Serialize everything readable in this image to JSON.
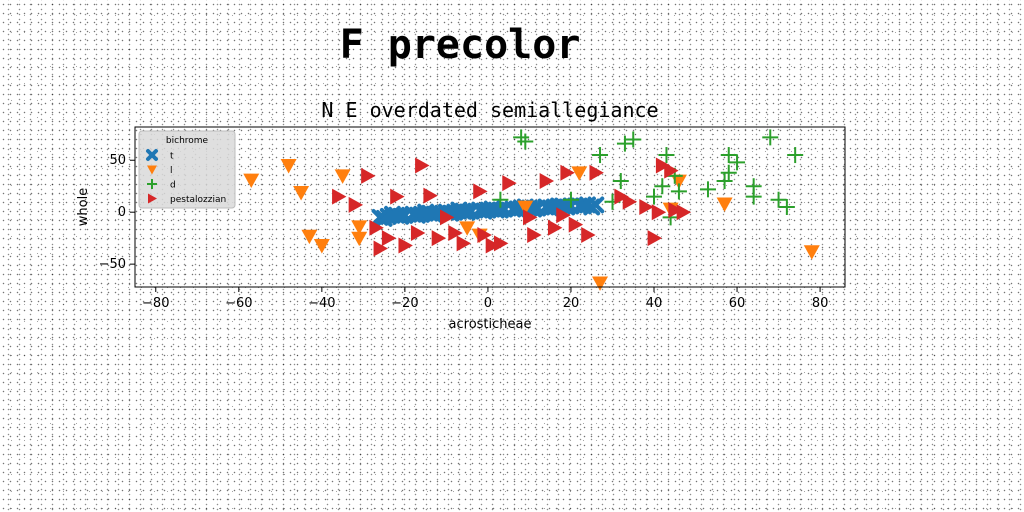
{
  "figure": {
    "suptitle": "F precolor"
  },
  "chart_data": {
    "type": "scatter",
    "title": "N E overdated semiallegiance",
    "xlabel": "acrosticheae",
    "ylabel": "whole",
    "xlim": [
      -85,
      86
    ],
    "ylim": [
      -72,
      82
    ],
    "xticks": [
      -80,
      -60,
      -40,
      -20,
      0,
      20,
      40,
      60,
      80
    ],
    "yticks": [
      -50,
      0,
      50
    ],
    "grid": false,
    "legend": {
      "title": "bichrome",
      "placement": "upper-left"
    },
    "series": [
      {
        "name": "t",
        "marker": "X",
        "color": "#1f77b4",
        "points": [
          [
            -26,
            -5
          ],
          [
            -24,
            -4
          ],
          [
            -22,
            -3
          ],
          [
            -20,
            -3
          ],
          [
            -18,
            -2
          ],
          [
            -16,
            -2
          ],
          [
            -14,
            -1
          ],
          [
            -12,
            -1
          ],
          [
            -10,
            0
          ],
          [
            -8,
            0
          ],
          [
            -6,
            1
          ],
          [
            -4,
            1
          ],
          [
            -2,
            2
          ],
          [
            0,
            2
          ],
          [
            2,
            2
          ],
          [
            4,
            3
          ],
          [
            6,
            3
          ],
          [
            8,
            4
          ],
          [
            10,
            4
          ],
          [
            12,
            4
          ],
          [
            14,
            5
          ],
          [
            16,
            5
          ],
          [
            18,
            6
          ],
          [
            20,
            6
          ],
          [
            22,
            6
          ],
          [
            24,
            7
          ],
          [
            26,
            7
          ],
          [
            -25,
            -6
          ],
          [
            -21,
            -4
          ],
          [
            -17,
            -3
          ],
          [
            -13,
            -2
          ],
          [
            -9,
            -1
          ],
          [
            -5,
            0
          ],
          [
            -1,
            1
          ],
          [
            3,
            2
          ],
          [
            7,
            3
          ],
          [
            11,
            3
          ],
          [
            15,
            4
          ],
          [
            19,
            5
          ],
          [
            23,
            6
          ],
          [
            -23,
            -2
          ],
          [
            -15,
            0
          ],
          [
            -7,
            2
          ],
          [
            1,
            3
          ],
          [
            9,
            5
          ],
          [
            17,
            6
          ],
          [
            25,
            5
          ]
        ]
      },
      {
        "name": "l",
        "marker": "v",
        "color": "#ff7f0e",
        "points": [
          [
            -57,
            31
          ],
          [
            -48,
            45
          ],
          [
            -45,
            19
          ],
          [
            -43,
            -23
          ],
          [
            -40,
            -32
          ],
          [
            -35,
            35
          ],
          [
            -31,
            -14
          ],
          [
            -31,
            -25
          ],
          [
            -2,
            -22
          ],
          [
            9,
            5
          ],
          [
            22,
            38
          ],
          [
            27,
            -68
          ],
          [
            44,
            3
          ],
          [
            46,
            30
          ],
          [
            57,
            8
          ],
          [
            78,
            -38
          ],
          [
            -5,
            -15
          ]
        ]
      },
      {
        "name": "d",
        "marker": "+",
        "color": "#2ca02c",
        "points": [
          [
            3,
            12
          ],
          [
            8,
            72
          ],
          [
            9,
            68
          ],
          [
            20,
            12
          ],
          [
            27,
            55
          ],
          [
            30,
            10
          ],
          [
            32,
            30
          ],
          [
            33,
            66
          ],
          [
            35,
            70
          ],
          [
            40,
            15
          ],
          [
            42,
            25
          ],
          [
            43,
            55
          ],
          [
            44,
            -5
          ],
          [
            45,
            35
          ],
          [
            46,
            20
          ],
          [
            53,
            22
          ],
          [
            57,
            30
          ],
          [
            58,
            55
          ],
          [
            58,
            38
          ],
          [
            60,
            48
          ],
          [
            64,
            15
          ],
          [
            64,
            25
          ],
          [
            68,
            72
          ],
          [
            70,
            12
          ],
          [
            72,
            5
          ],
          [
            74,
            55
          ]
        ]
      },
      {
        "name": "pestalozzian",
        "marker": ">",
        "color": "#d62728",
        "points": [
          [
            -36,
            15
          ],
          [
            -32,
            7
          ],
          [
            -29,
            35
          ],
          [
            -27,
            -15
          ],
          [
            -26,
            -35
          ],
          [
            -24,
            -25
          ],
          [
            -22,
            15
          ],
          [
            -20,
            -32
          ],
          [
            -17,
            -20
          ],
          [
            -16,
            45
          ],
          [
            -14,
            16
          ],
          [
            -12,
            -25
          ],
          [
            -10,
            -5
          ],
          [
            -8,
            -20
          ],
          [
            -6,
            -30
          ],
          [
            -2,
            20
          ],
          [
            -1,
            -22
          ],
          [
            1,
            -32
          ],
          [
            3,
            -30
          ],
          [
            5,
            28
          ],
          [
            10,
            -5
          ],
          [
            11,
            -22
          ],
          [
            14,
            30
          ],
          [
            16,
            -15
          ],
          [
            18,
            -3
          ],
          [
            19,
            38
          ],
          [
            21,
            -12
          ],
          [
            24,
            -22
          ],
          [
            26,
            38
          ],
          [
            32,
            15
          ],
          [
            34,
            10
          ],
          [
            38,
            5
          ],
          [
            40,
            -25
          ],
          [
            41,
            0
          ],
          [
            42,
            45
          ],
          [
            44,
            40
          ],
          [
            45,
            2
          ],
          [
            47,
            0
          ]
        ]
      }
    ]
  },
  "legend_bg_color": "#d9d9d9"
}
